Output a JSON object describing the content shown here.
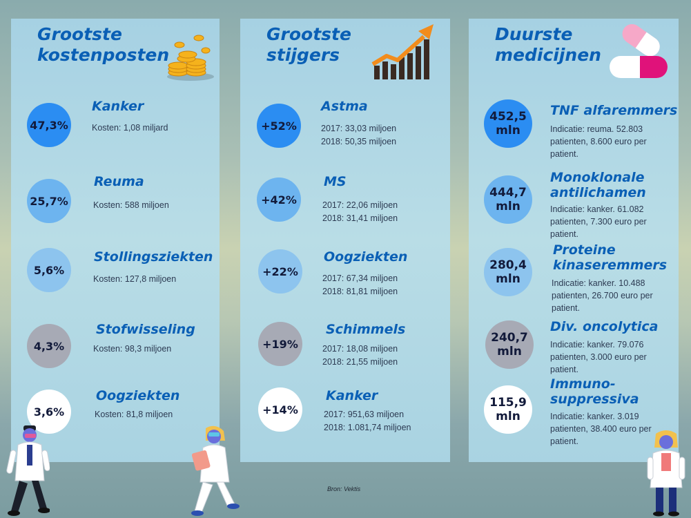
{
  "columns": [
    {
      "title": "Grootste kostenposten",
      "icon": "coins-icon",
      "items": [
        {
          "badge": "47,3%",
          "name": "Kanker",
          "lines": [
            "Kosten: 1,08 miljard"
          ]
        },
        {
          "badge": "25,7%",
          "name": "Reuma",
          "lines": [
            "Kosten: 588 miljoen"
          ]
        },
        {
          "badge": "5,6%",
          "name": "Stollingsziekten",
          "lines": [
            "Kosten: 127,8 miljoen"
          ]
        },
        {
          "badge": "4,3%",
          "name": "Stofwisseling",
          "lines": [
            "Kosten: 98,3 miljoen"
          ]
        },
        {
          "badge": "3,6%",
          "name": "Oogziekten",
          "lines": [
            "Kosten: 81,8 miljoen"
          ]
        }
      ]
    },
    {
      "title": "Grootste stijgers",
      "icon": "rising-chart-icon",
      "items": [
        {
          "badge": "+52%",
          "name": "Astma",
          "lines": [
            "2017: 33,03 miljoen",
            "2018: 50,35 miljoen"
          ]
        },
        {
          "badge": "+42%",
          "name": "MS",
          "lines": [
            "2017: 22,06 miljoen",
            "2018: 31,41 miljoen"
          ]
        },
        {
          "badge": "+22%",
          "name": "Oogziekten",
          "lines": [
            "2017: 67,34 miljoen",
            "2018: 81,81 miljoen"
          ]
        },
        {
          "badge": "+19%",
          "name": "Schimmels",
          "lines": [
            "2017: 18,08 miljoen",
            "2018: 21,55 miljoen"
          ]
        },
        {
          "badge": "+14%",
          "name": "Kanker",
          "lines": [
            "2017: 951,63 miljoen",
            "2018: 1.081,74 miljoen"
          ]
        }
      ]
    },
    {
      "title": "Duurste medicijnen",
      "icon": "pills-icon",
      "items": [
        {
          "badge_value": "452,5",
          "badge_unit": "mln",
          "name": "TNF alfaremmers",
          "text": "Indicatie: reuma. 52.803 patienten, 8.600 euro per patient."
        },
        {
          "badge_value": "444,7",
          "badge_unit": "mln",
          "name": "Monoklonale antilichamen",
          "text": "Indicatie: kanker. 61.082 patienten, 7.300 euro per patient."
        },
        {
          "badge_value": "280,4",
          "badge_unit": "mln",
          "name": "Proteine kinaseremmers",
          "text": "Indicatie: kanker. 10.488 patienten, 26.700 euro per patient."
        },
        {
          "badge_value": "240,7",
          "badge_unit": "mln",
          "name": "Div. oncolytica",
          "text": "Indicatie: kanker. 79.076 patienten, 3.000 euro per patient."
        },
        {
          "badge_value": "115,9",
          "badge_unit": "mln",
          "name": "Immuno-suppressiva",
          "text": "Indicatie: kanker. 3.019 patienten, 38.400 euro per patient."
        }
      ]
    }
  ],
  "source": "Bron: Vektis",
  "colors": {
    "title": "#0a5fb5",
    "badge_blue": "#2b8df2",
    "badge_mid": "#6db4ef",
    "badge_light": "#8dc4ee",
    "badge_grey": "#a7aab5",
    "badge_white": "#ffffff",
    "panel": "#b0d8e5"
  }
}
